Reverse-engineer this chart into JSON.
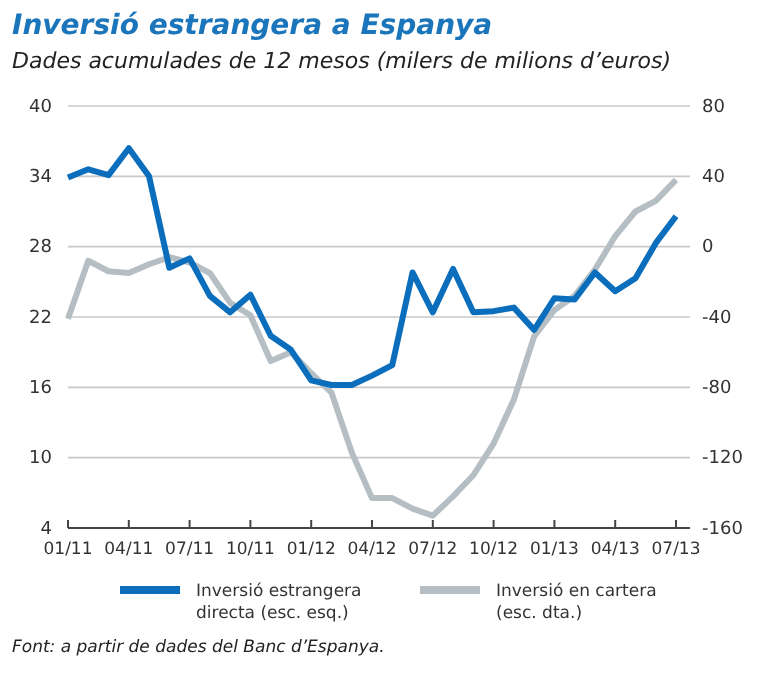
{
  "chart_data": {
    "type": "line",
    "title": "Inversió estrangera a Espanya",
    "subtitle": "Dades acumulades de 12 mesos (milers de milions d’euros)",
    "categories": [
      "01/11",
      null,
      null,
      "04/11",
      null,
      null,
      "07/11",
      null,
      null,
      "10/11",
      null,
      null,
      "01/12",
      null,
      null,
      "04/12",
      null,
      null,
      "07/12",
      null,
      null,
      "10/12",
      null,
      null,
      "01/13",
      null,
      null,
      "04/13",
      null,
      null,
      "07/13"
    ],
    "series": [
      {
        "name": "Inversió estrangera directa (esc. esq.)",
        "color": "#0a6ebd",
        "values": [
          33.9,
          34.6,
          34.1,
          36.4,
          34.0,
          26.2,
          27.0,
          23.8,
          22.4,
          23.9,
          20.4,
          19.2,
          16.6,
          16.2,
          16.2,
          17.0,
          17.9,
          25.8,
          22.4,
          26.1,
          22.4,
          22.5,
          22.8,
          20.9,
          23.6,
          23.5,
          25.8,
          24.2,
          25.3,
          28.3,
          30.6
        ]
      },
      {
        "name": "Inversió en cartera (esc. dta.)",
        "color": "#b4bec3",
        "axis": "y2",
        "values": [
          -41,
          -8,
          -14,
          -15,
          -10,
          -6,
          -9,
          -15,
          -32,
          -39,
          -65,
          -60,
          -72,
          -83,
          -117,
          -143,
          -143,
          -149,
          -153,
          -142,
          -130,
          -112,
          -87,
          -51,
          -36,
          -28,
          -13,
          6,
          20,
          26,
          38
        ]
      }
    ],
    "ylim": [
      4,
      40
    ],
    "yticks": [
      4,
      10,
      16,
      22,
      28,
      34,
      40
    ],
    "y2lim": [
      -160,
      80
    ],
    "y2ticks": [
      -160,
      -120,
      -80,
      -40,
      0,
      40,
      80
    ],
    "grid": "y",
    "legend": "bottom",
    "annotations": [
      "Font: a partir de dades del Banc d’Espanya."
    ]
  }
}
